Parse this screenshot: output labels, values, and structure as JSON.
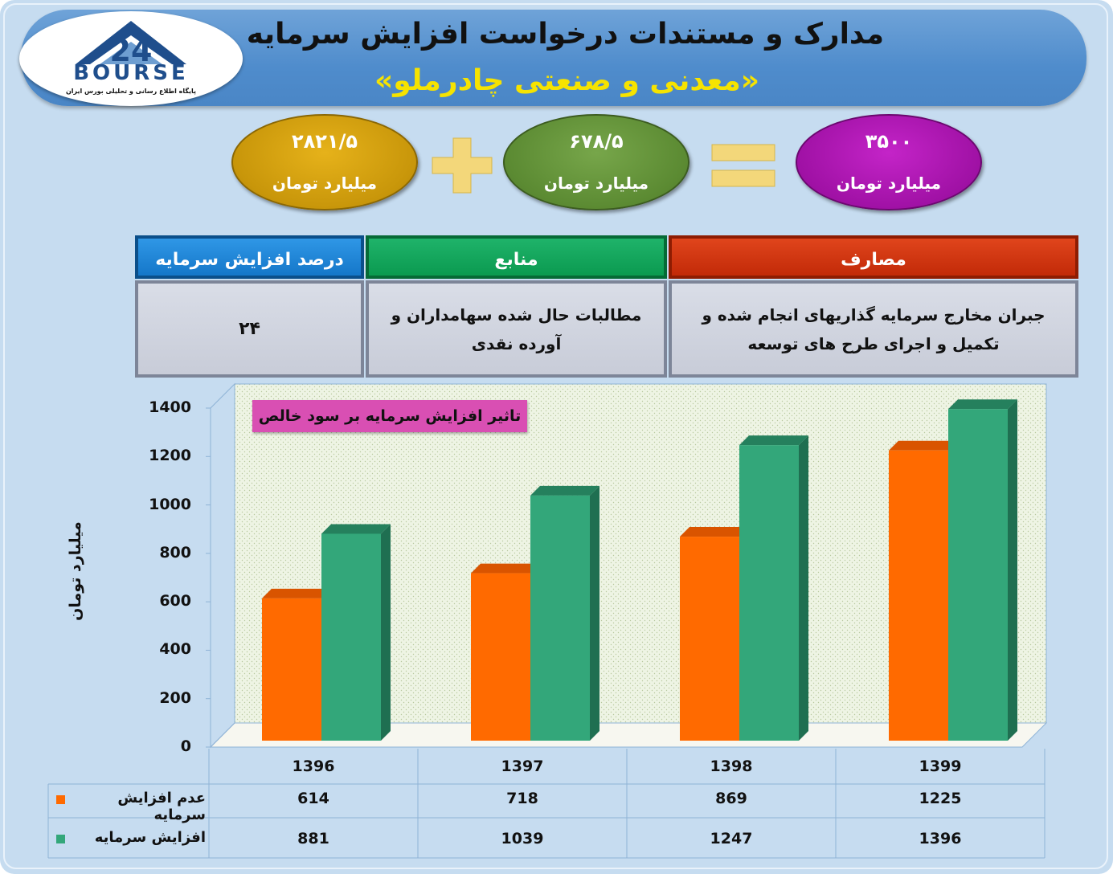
{
  "header": {
    "title": "مدارک و مستندات درخواست افزایش سرمایه",
    "subtitle": "«معدنی و صنعتی چادرملو»"
  },
  "logo": {
    "mark": "24",
    "word": "BOURSE",
    "tagline": "پایگاه اطلاع رسانی و تحلیلی بورس ایران"
  },
  "equation": {
    "total": {
      "value": "۳۵۰۰",
      "unit": "میلیارد تومان",
      "color": "#a011a5"
    },
    "cash": {
      "value": "۶۷۸/۵",
      "unit": "میلیارد تومان",
      "color": "#5b8a32"
    },
    "claims": {
      "value": "۲۸۲۱/۵",
      "unit": "میلیارد تومان",
      "color": "#c8960a"
    },
    "plus_icon": "plus-icon",
    "equals_icon": "equals-icon"
  },
  "table": {
    "headers": {
      "costs": "مصارف",
      "sources": "منابع",
      "percent": "درصد افزایش سرمایه"
    },
    "costs_text": "جبران مخارج سرمایه گذاریهای انجام شده و تکمیل و اجرای طرح های توسعه",
    "sources_text": "مطالبات حال شده سهامداران و آورده نقدی",
    "percent_value": "۲۴"
  },
  "chart_data": {
    "type": "bar",
    "title": "تاثیر افزایش سرمایه بر سود خالص",
    "ylabel": "میلیارد تومان",
    "xlabel": "",
    "ylim": [
      0,
      1400
    ],
    "yticks": [
      "1400",
      "1200",
      "1000",
      "800",
      "600",
      "400",
      "200",
      "0"
    ],
    "categories": [
      "1396",
      "1397",
      "1398",
      "1399"
    ],
    "series": [
      {
        "name": "عدم افزایش سرمایه",
        "values": [
          614,
          718,
          869,
          1225
        ],
        "labels": [
          "614",
          "718",
          "869",
          "1225"
        ],
        "color": "#ff6a00"
      },
      {
        "name": "افزایش سرمایه",
        "values": [
          881,
          1039,
          1247,
          1396
        ],
        "labels": [
          "881",
          "1039",
          "1247",
          "1396"
        ],
        "color": "#33a77a"
      }
    ],
    "grid": false,
    "legend": "bottom-left data table"
  }
}
